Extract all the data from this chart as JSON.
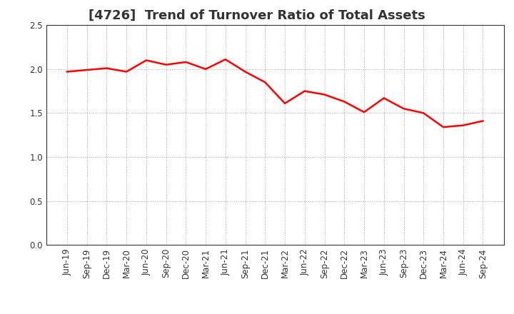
{
  "title": "[4726]  Trend of Turnover Ratio of Total Assets",
  "labels": [
    "Jun-19",
    "Sep-19",
    "Dec-19",
    "Mar-20",
    "Jun-20",
    "Sep-20",
    "Dec-20",
    "Mar-21",
    "Jun-21",
    "Sep-21",
    "Dec-21",
    "Mar-22",
    "Jun-22",
    "Sep-22",
    "Dec-22",
    "Mar-23",
    "Jun-23",
    "Sep-23",
    "Dec-23",
    "Mar-24",
    "Jun-24",
    "Sep-24"
  ],
  "values": [
    1.97,
    1.99,
    2.01,
    1.97,
    2.1,
    2.05,
    2.08,
    2.0,
    2.11,
    1.97,
    1.85,
    1.61,
    1.75,
    1.71,
    1.63,
    1.51,
    1.67,
    1.55,
    1.5,
    1.34,
    1.36,
    1.41
  ],
  "line_color": "#ff0000",
  "line_width": 1.8,
  "ylim": [
    0.0,
    2.5
  ],
  "yticks": [
    0.0,
    0.5,
    1.0,
    1.5,
    2.0,
    2.5
  ],
  "title_fontsize": 13,
  "tick_fontsize": 8.5,
  "bg_color": "#ffffff",
  "grid_color": "#aaaaaa",
  "title_color": "#333333"
}
